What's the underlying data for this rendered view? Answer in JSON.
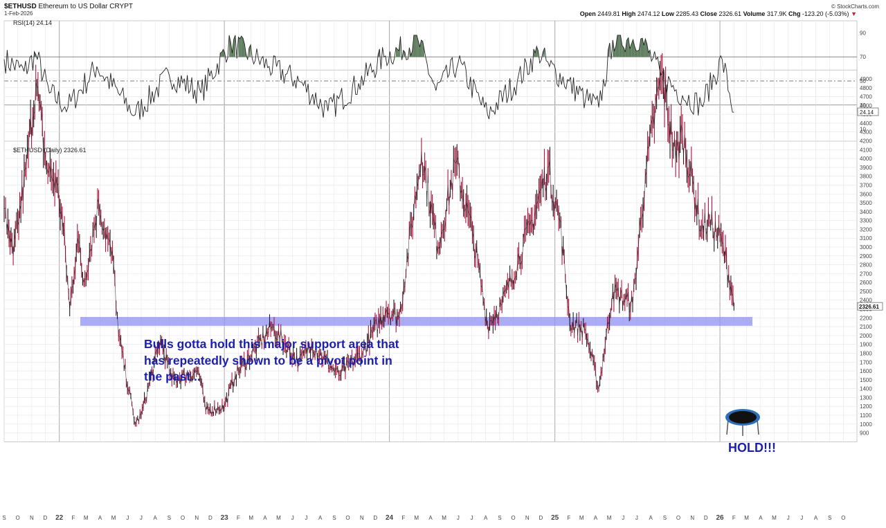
{
  "header": {
    "symbol": "$ETHUSD",
    "name": "Ethereum to US Dollar",
    "exchange": "CRYPT",
    "date": "1-Feb-2026",
    "brand": "© StockCharts.com",
    "open_label": "Open",
    "open": "2449.81",
    "high_label": "High",
    "high": "2474.12",
    "low_label": "Low",
    "low": "2285.43",
    "close_label": "Close",
    "close": "2326.61",
    "volume_label": "Volume",
    "volume": "317.9K",
    "chg_label": "Chg",
    "chg": "-123.20 (-5.03%)"
  },
  "annotations": {
    "support_note": "Bulls gotta hold this major support area that has repeatedly shown to be a pivot point in the past...",
    "hold": "HOLD!!!",
    "support_zone": [
      2110,
      2210
    ],
    "trampoline_icon": "trampoline-icon"
  },
  "colors": {
    "price": "#b3123c",
    "price_dark": "#1a1a1a",
    "rsi_line": "#222222",
    "rsi_fill": "#5f7f5f",
    "support": "#8f8ff5",
    "annotation": "#1a1fb0",
    "grid": "#e6e6e6"
  },
  "chart_data": [
    {
      "type": "line",
      "title": "RSI(14) 24.14",
      "indicator": "RSI(14)",
      "last_value": 24.14,
      "ylim": [
        0,
        100
      ],
      "reference_lines": [
        30,
        50,
        70
      ],
      "yticks": [
        10,
        30,
        50,
        70,
        90
      ],
      "x": [
        "2021-09-01",
        "2021-10-15",
        "2021-11-10",
        "2021-12-10",
        "2022-01-20",
        "2022-03-25",
        "2022-06-18",
        "2022-09-01",
        "2022-11-10",
        "2023-01-15",
        "2023-04-10",
        "2023-06-15",
        "2023-08-18",
        "2023-10-25",
        "2023-12-20",
        "2024-03-05",
        "2024-04-13",
        "2024-06-01",
        "2024-08-05",
        "2024-10-10",
        "2024-11-25",
        "2024-12-20",
        "2025-03-10",
        "2025-04-08",
        "2025-05-09",
        "2025-07-10",
        "2025-08-23",
        "2025-10-10",
        "2025-11-21",
        "2026-01-06",
        "2026-02-01"
      ],
      "values": [
        68,
        58,
        72,
        40,
        28,
        62,
        22,
        55,
        40,
        82,
        62,
        50,
        25,
        48,
        70,
        83,
        42,
        65,
        22,
        50,
        75,
        62,
        35,
        28,
        84,
        85,
        55,
        38,
        30,
        68,
        24
      ]
    },
    {
      "type": "line",
      "title": "$ETHUSD (Daily) 2326.61",
      "series_label": "$ETHUSD (Daily)",
      "last_value": 2326.61,
      "ylim": [
        800,
        5000
      ],
      "yticks": [
        900,
        1000,
        1100,
        1200,
        1300,
        1400,
        1500,
        1600,
        1700,
        1800,
        1900,
        2000,
        2100,
        2200,
        2300,
        2400,
        2500,
        2600,
        2700,
        2800,
        2900,
        3000,
        3100,
        3200,
        3300,
        3400,
        3500,
        3600,
        3700,
        3800,
        3900,
        4000,
        4100,
        4200,
        4300,
        4400,
        4500,
        4600,
        4700,
        4800,
        4900
      ],
      "x_months": [
        "S",
        "O",
        "N",
        "D",
        "22",
        "F",
        "M",
        "A",
        "M",
        "J",
        "J",
        "A",
        "S",
        "O",
        "N",
        "D",
        "23",
        "F",
        "M",
        "A",
        "M",
        "J",
        "J",
        "A",
        "S",
        "O",
        "N",
        "D",
        "24",
        "F",
        "M",
        "A",
        "M",
        "J",
        "J",
        "A",
        "S",
        "O",
        "N",
        "D",
        "25",
        "F",
        "M",
        "A",
        "M",
        "J",
        "J",
        "A",
        "S",
        "O",
        "N",
        "D",
        "26",
        "F",
        "M",
        "A",
        "M",
        "J",
        "J",
        "A",
        "S",
        "O"
      ],
      "x": [
        "2021-09-01",
        "2021-09-07",
        "2021-09-21",
        "2021-10-20",
        "2021-11-10",
        "2021-12-04",
        "2021-12-27",
        "2022-01-10",
        "2022-01-24",
        "2022-02-10",
        "2022-02-24",
        "2022-03-29",
        "2022-05-01",
        "2022-05-12",
        "2022-06-18",
        "2022-07-01",
        "2022-08-13",
        "2022-09-07",
        "2022-11-05",
        "2022-11-21",
        "2023-01-01",
        "2023-01-25",
        "2023-04-16",
        "2023-06-15",
        "2023-07-13",
        "2023-09-11",
        "2023-11-01",
        "2023-12-25",
        "2024-01-23",
        "2024-03-12",
        "2024-04-17",
        "2024-05-27",
        "2024-07-05",
        "2024-08-05",
        "2024-09-06",
        "2024-11-12",
        "2024-12-16",
        "2025-01-12",
        "2025-02-03",
        "2025-03-10",
        "2025-04-08",
        "2025-05-09",
        "2025-06-22",
        "2025-07-20",
        "2025-08-24",
        "2025-09-25",
        "2025-10-10",
        "2025-11-21",
        "2025-12-09",
        "2026-01-06",
        "2026-01-30",
        "2026-02-01"
      ],
      "values": [
        3430,
        3200,
        2900,
        3900,
        4860,
        3900,
        3700,
        3200,
        2300,
        3100,
        2600,
        3500,
        2800,
        2000,
        1000,
        1100,
        1950,
        1500,
        1600,
        1150,
        1200,
        1550,
        2100,
        1700,
        1900,
        1550,
        1800,
        2300,
        2200,
        4080,
        3000,
        3950,
        3100,
        2120,
        2350,
        3300,
        3900,
        3300,
        2150,
        2050,
        1400,
        2500,
        2350,
        3800,
        4950,
        4000,
        4300,
        3200,
        3300,
        3050,
        2450,
        2326.61
      ]
    }
  ]
}
